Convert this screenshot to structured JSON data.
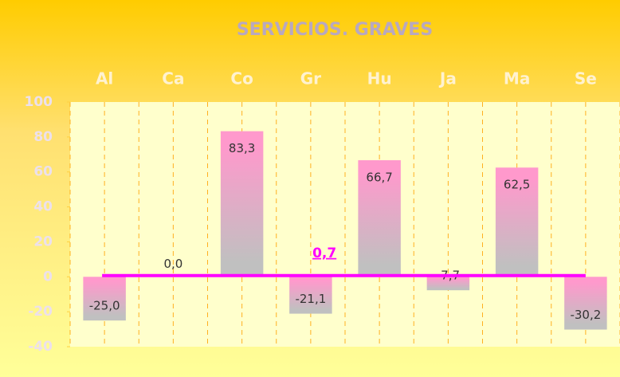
{
  "chart_data": {
    "type": "bar",
    "title": "SERVICIOS. GRAVES",
    "categories": [
      "Al",
      "Ca",
      "Co",
      "Gr",
      "Hu",
      "Ja",
      "Ma",
      "Se"
    ],
    "values": [
      -25.0,
      0.0,
      83.3,
      -21.1,
      66.7,
      -7.7,
      62.5,
      -30.2
    ],
    "value_labels": [
      "-25,0",
      "0,0",
      "83,3",
      "-21,1",
      "66,7",
      "-7,7",
      "62,5",
      "-30,2"
    ],
    "ylim": [
      -40,
      100
    ],
    "yticks": [
      -40,
      -20,
      0,
      20,
      40,
      60,
      80,
      100
    ],
    "colors": [
      "#ff99cc",
      "#c0c0c0"
    ],
    "reference_line": {
      "value": 0.7,
      "label": "0,7",
      "color": "#ff00ff"
    }
  }
}
